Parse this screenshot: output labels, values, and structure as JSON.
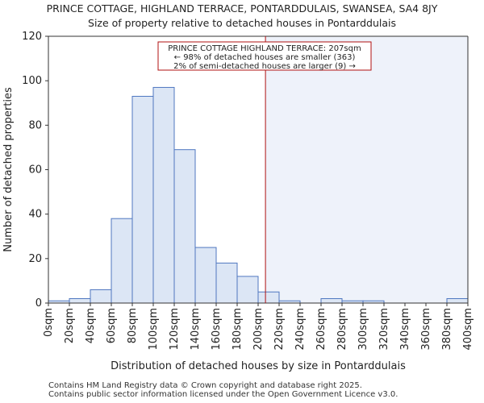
{
  "title": "PRINCE COTTAGE, HIGHLAND TERRACE, PONTARDDULAIS, SWANSEA, SA4 8JY",
  "subtitle": "Size of property relative to detached houses in Pontarddulais",
  "footer": [
    "Contains HM Land Registry data © Crown copyright and database right 2025.",
    "Contains public sector information licensed under the Open Government Licence v3.0."
  ],
  "colors": {
    "bar_fill": "#dce6f5",
    "bar_stroke": "#4f77c0",
    "marker_line": "#b01010",
    "shade": "#eef2fa"
  },
  "chart_data": {
    "type": "bar",
    "xlabel": "Distribution of detached houses by size in Pontarddulais",
    "ylabel": "Number of detached properties",
    "ylim": [
      0,
      120
    ],
    "yticks": [
      0,
      20,
      40,
      60,
      80,
      100,
      120
    ],
    "xlim": [
      0,
      400
    ],
    "xticks": [
      "0sqm",
      "20sqm",
      "40sqm",
      "60sqm",
      "80sqm",
      "100sqm",
      "120sqm",
      "140sqm",
      "160sqm",
      "180sqm",
      "200sqm",
      "220sqm",
      "240sqm",
      "260sqm",
      "280sqm",
      "300sqm",
      "320sqm",
      "340sqm",
      "360sqm",
      "380sqm",
      "400sqm"
    ],
    "bin_width": 20,
    "bins": [
      0,
      20,
      40,
      60,
      80,
      100,
      120,
      140,
      160,
      180,
      200,
      220,
      240,
      260,
      280,
      300,
      320,
      340,
      360,
      380
    ],
    "values": [
      1,
      2,
      6,
      38,
      93,
      97,
      69,
      25,
      18,
      12,
      5,
      1,
      0,
      2,
      1,
      1,
      0,
      0,
      0,
      2
    ],
    "marker_value": 207,
    "annotation": [
      "PRINCE COTTAGE HIGHLAND TERRACE: 207sqm",
      "← 98% of detached houses are smaller (363)",
      "2% of semi-detached houses are larger (9) →"
    ]
  }
}
